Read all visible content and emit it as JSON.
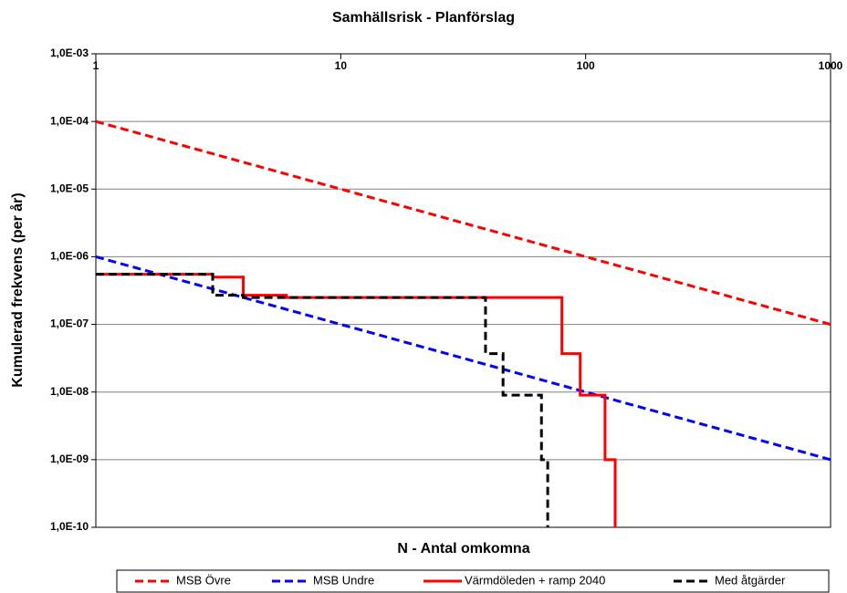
{
  "chart_data": {
    "type": "line",
    "title": "Samhällsrisk - Planförslag",
    "xlabel": "N - Antal omkomna",
    "ylabel": "Kumulerad frekvens (per år)",
    "xscale": "log",
    "yscale": "log",
    "xlim": [
      1,
      1000
    ],
    "ylim": [
      1e-10,
      0.001
    ],
    "xticks": [
      1,
      10,
      100,
      1000
    ],
    "yticks": [
      {
        "value": 1e-10,
        "label": "1,0E-10"
      },
      {
        "value": 1e-09,
        "label": "1,0E-09"
      },
      {
        "value": 1e-08,
        "label": "1,0E-08"
      },
      {
        "value": 1e-07,
        "label": "1,0E-07"
      },
      {
        "value": 1e-06,
        "label": "1,0E-06"
      },
      {
        "value": 1e-05,
        "label": "1,0E-05"
      },
      {
        "value": 0.0001,
        "label": "1,0E-04"
      },
      {
        "value": 0.001,
        "label": "1,0E-03"
      }
    ],
    "grid": true,
    "legend": "bottom",
    "series": [
      {
        "name": "MSB Övre",
        "color": "#ff0000",
        "dashed": true,
        "x": [
          1,
          1000
        ],
        "values": [
          0.0001,
          1e-07
        ]
      },
      {
        "name": "MSB Undre",
        "color": "#0000ff",
        "dashed": true,
        "x": [
          1,
          1000
        ],
        "values": [
          1e-06,
          1e-09
        ]
      },
      {
        "name": "Värmdöleden + ramp 2040",
        "color": "#ff0000",
        "dashed": false,
        "x": [
          1,
          3,
          3,
          4,
          4,
          6,
          6,
          80,
          80,
          95,
          95,
          120,
          120,
          132,
          132
        ],
        "values": [
          5.5e-07,
          5.5e-07,
          5e-07,
          5e-07,
          2.7e-07,
          2.7e-07,
          2.5e-07,
          2.5e-07,
          3.7e-08,
          3.7e-08,
          9e-09,
          9e-09,
          1e-09,
          1e-09,
          1e-10
        ]
      },
      {
        "name": "Med åtgärder",
        "color": "#000000",
        "dashed": true,
        "x": [
          1,
          3,
          3,
          4,
          4,
          39,
          39,
          46,
          46,
          66,
          66,
          70,
          70
        ],
        "values": [
          5.5e-07,
          5.5e-07,
          2.7e-07,
          2.7e-07,
          2.5e-07,
          2.5e-07,
          3.7e-08,
          3.7e-08,
          9e-09,
          9e-09,
          1e-09,
          1e-09,
          1e-10
        ]
      }
    ]
  }
}
